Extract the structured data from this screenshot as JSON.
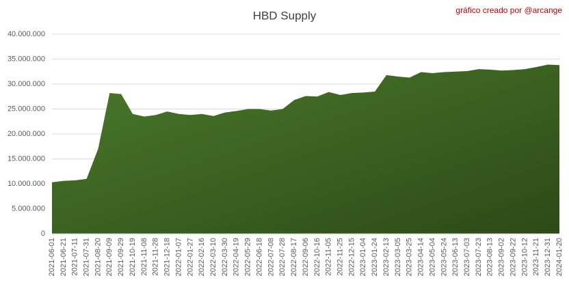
{
  "chart_data": {
    "type": "area",
    "title": "HBD Supply",
    "annotation": "gráfico creado por @arcange",
    "color": "#4b7a2b",
    "grid": true,
    "categories": [
      "2021-06-01",
      "2021-06-21",
      "2021-07-11",
      "2021-07-31",
      "2021-08-20",
      "2021-09-09",
      "2021-09-29",
      "2021-10-19",
      "2021-11-08",
      "2021-11-28",
      "2021-12-18",
      "2022-01-07",
      "2022-01-27",
      "2022-02-16",
      "2022-03-10",
      "2022-03-30",
      "2022-04-19",
      "2022-05-29",
      "2022-06-18",
      "2022-07-08",
      "2022-07-28",
      "2022-08-17",
      "2022-09-06",
      "2022-10-16",
      "2022-11-05",
      "2022-11-25",
      "2022-12-15",
      "2023-01-04",
      "2023-01-24",
      "2023-02-13",
      "2023-03-05",
      "2023-03-25",
      "2023-04-14",
      "2023-05-04",
      "2023-05-24",
      "2023-06-13",
      "2023-07-03",
      "2023-07-23",
      "2023-08-13",
      "2023-09-02",
      "2023-09-22",
      "2023-10-12",
      "2023-11-21",
      "2023-12-31",
      "2024-01-20"
    ],
    "values": [
      10300000,
      10600000,
      10700000,
      11000000,
      17000000,
      28200000,
      28000000,
      24000000,
      23500000,
      23800000,
      24500000,
      24000000,
      23800000,
      24000000,
      23600000,
      24300000,
      24600000,
      25000000,
      25000000,
      24700000,
      25000000,
      26800000,
      27600000,
      27500000,
      28400000,
      27800000,
      28200000,
      28300000,
      28500000,
      31800000,
      31500000,
      31300000,
      32400000,
      32200000,
      32400000,
      32500000,
      32600000,
      33000000,
      32900000,
      32700000,
      32800000,
      33000000,
      33400000,
      33900000,
      33800000
    ],
    "ylim": [
      0,
      40000000
    ],
    "yticks": [
      0,
      {
        "value": 5000000,
        "label": "5.000.000"
      },
      {
        "value": 10000000,
        "label": "10.000.000"
      },
      {
        "value": 15000000,
        "label": "15.000.000"
      },
      {
        "value": 20000000,
        "label": "20.000.000"
      },
      {
        "value": 25000000,
        "label": "25.000.000"
      },
      {
        "value": 30000000,
        "label": "30.000.000"
      },
      {
        "value": 35000000,
        "label": "35.000.000"
      },
      {
        "value": 40000000,
        "label": "40.000.000"
      }
    ]
  }
}
